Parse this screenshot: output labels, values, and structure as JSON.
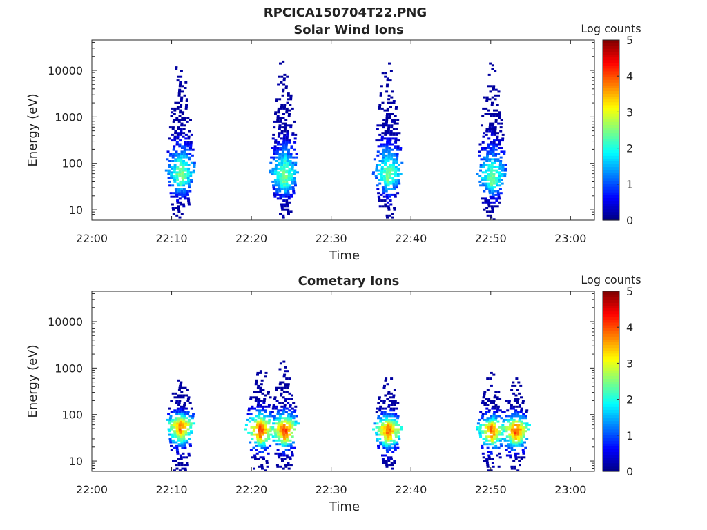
{
  "figure": {
    "title": "RPCICA150704T22.PNG"
  },
  "chart_data": [
    {
      "type": "heatmap",
      "title": "Solar Wind Ions",
      "xlabel": "Time",
      "ylabel": "Energy (eV)",
      "x_ticks": [
        "22:00",
        "22:10",
        "22:20",
        "22:30",
        "22:40",
        "22:50",
        "23:00"
      ],
      "xlim": [
        "22:00",
        "23:03"
      ],
      "y_scale": "log",
      "y_ticks": [
        10,
        100,
        1000,
        10000
      ],
      "ylim": [
        6,
        45000
      ],
      "colorbar": {
        "label": "Log counts",
        "range": [
          0,
          5
        ],
        "ticks": [
          0,
          1,
          2,
          3,
          4,
          5
        ],
        "colormap": "jet"
      },
      "bursts": [
        {
          "time": "22:11",
          "peak_energy_eV": 55,
          "peak_log_counts": 2.6,
          "max_energy_eV": 12000
        },
        {
          "time": "22:24",
          "peak_energy_eV": 50,
          "peak_log_counts": 2.6,
          "max_energy_eV": 13000
        },
        {
          "time": "22:37",
          "peak_energy_eV": 55,
          "peak_log_counts": 2.6,
          "max_energy_eV": 14000
        },
        {
          "time": "22:50",
          "peak_energy_eV": 45,
          "peak_log_counts": 2.5,
          "max_energy_eV": 14000
        }
      ]
    },
    {
      "type": "heatmap",
      "title": "Cometary Ions",
      "xlabel": "Time",
      "ylabel": "Energy (eV)",
      "x_ticks": [
        "22:00",
        "22:10",
        "22:20",
        "22:30",
        "22:40",
        "22:50",
        "23:00"
      ],
      "xlim": [
        "22:00",
        "23:03"
      ],
      "y_scale": "log",
      "y_ticks": [
        10,
        100,
        1000,
        10000
      ],
      "ylim": [
        6,
        45000
      ],
      "colorbar": {
        "label": "Log counts",
        "range": [
          0,
          5
        ],
        "ticks": [
          0,
          1,
          2,
          3,
          4,
          5
        ],
        "colormap": "jet"
      },
      "bursts": [
        {
          "time": "22:11",
          "peak_energy_eV": 55,
          "peak_log_counts": 4.0,
          "max_energy_eV": 600
        },
        {
          "time": "22:21",
          "peak_energy_eV": 45,
          "peak_log_counts": 4.2,
          "max_energy_eV": 1100
        },
        {
          "time": "22:24",
          "peak_energy_eV": 45,
          "peak_log_counts": 4.2,
          "max_energy_eV": 1000
        },
        {
          "time": "22:37",
          "peak_energy_eV": 45,
          "peak_log_counts": 4.1,
          "max_energy_eV": 700
        },
        {
          "time": "22:50",
          "peak_energy_eV": 45,
          "peak_log_counts": 4.0,
          "max_energy_eV": 600
        },
        {
          "time": "22:53",
          "peak_energy_eV": 45,
          "peak_log_counts": 4.2,
          "max_energy_eV": 650
        }
      ]
    }
  ]
}
